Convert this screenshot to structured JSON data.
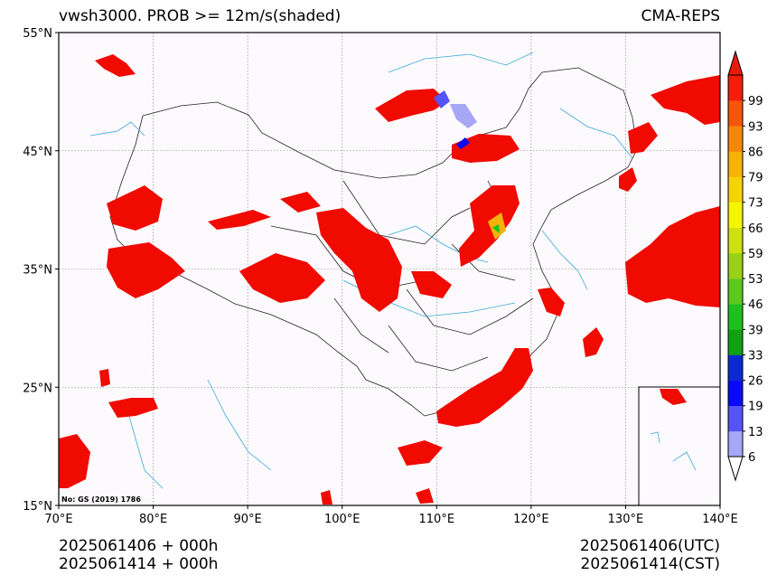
{
  "title_left": "vwsh3000. PROB >= 12m/s(shaded)",
  "title_right": "CMA-REPS",
  "footer": {
    "left_line1": "2025061406  +  000h",
    "left_line2": "2025061414  +  000h",
    "right_line1": "2025061406(UTC)",
    "right_line2": "2025061414(CST)"
  },
  "map": {
    "lon_range": [
      70,
      140
    ],
    "lat_range": [
      15,
      55
    ],
    "lon_ticks": [
      {
        "value": 70,
        "label": "70°E"
      },
      {
        "value": 80,
        "label": "80°E"
      },
      {
        "value": 90,
        "label": "90°E"
      },
      {
        "value": 100,
        "label": "100°E"
      },
      {
        "value": 110,
        "label": "110°E"
      },
      {
        "value": 120,
        "label": "120°E"
      },
      {
        "value": 130,
        "label": "130°E"
      },
      {
        "value": 140,
        "label": "140°E"
      }
    ],
    "lat_ticks": [
      {
        "value": 55,
        "label": "55°N"
      },
      {
        "value": 45,
        "label": "45°N"
      },
      {
        "value": 35,
        "label": "35°N"
      },
      {
        "value": 25,
        "label": "25°N"
      },
      {
        "value": 15,
        "label": "15°N"
      }
    ],
    "grid": true,
    "background_color": "#fdfafd",
    "shade_color": "#f00a00",
    "border_color": "#222222",
    "river_color": "#3aa7d8",
    "approval_note": "No: GS (2019) 1786",
    "inset": true
  },
  "colorbar": {
    "levels": [
      "6",
      "13",
      "19",
      "26",
      "33",
      "39",
      "46",
      "53",
      "59",
      "66",
      "73",
      "79",
      "86",
      "93",
      "99"
    ],
    "colors": [
      "#a7a7f7",
      "#5555f7",
      "#0a0af7",
      "#0a2ad0",
      "#11a011",
      "#1ec01e",
      "#5fc81f",
      "#99d11a",
      "#cde015",
      "#f5f50a",
      "#f5d30a",
      "#f5b30a",
      "#f5880a",
      "#f5560a",
      "#f01e0a"
    ],
    "extend_low_color": "#ffffff",
    "extend_high_color": "#e81a0a"
  }
}
